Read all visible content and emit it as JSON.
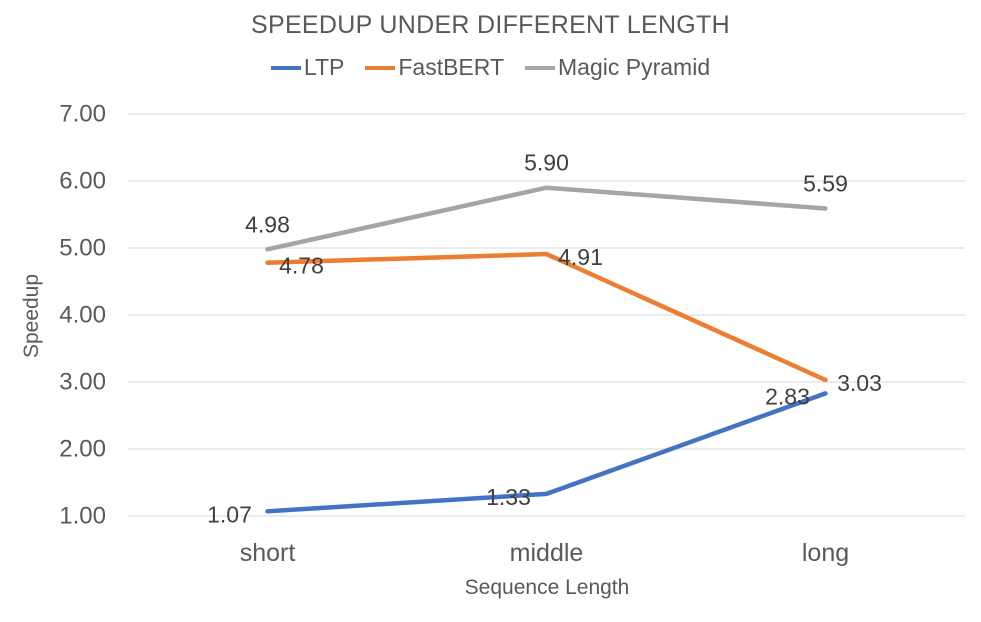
{
  "chart_data": {
    "type": "line",
    "title": "SPEEDUP UNDER DIFFERENT LENGTH",
    "xlabel": "Sequence Length",
    "ylabel": "Speedup",
    "categories": [
      "short",
      "middle",
      "long"
    ],
    "series": [
      {
        "name": "LTP",
        "color": "#4472C4",
        "values": [
          1.07,
          1.33,
          2.83
        ],
        "label_offset": [
          -38,
          3
        ]
      },
      {
        "name": "FastBERT",
        "color": "#ED7D31",
        "values": [
          4.78,
          4.91,
          3.03
        ],
        "label_offset": [
          34,
          3
        ]
      },
      {
        "name": "Magic Pyramid",
        "color": "#A5A5A5",
        "values": [
          4.98,
          5.9,
          5.59
        ],
        "label_offset": [
          0,
          -25
        ]
      }
    ],
    "y_ticks": [
      "1.00",
      "2.00",
      "3.00",
      "4.00",
      "5.00",
      "6.00",
      "7.00"
    ],
    "ylim": [
      1,
      7
    ],
    "grid": true,
    "legend_position": "top",
    "data_labels": true,
    "data_label_format": "0.00"
  },
  "theme": {
    "text_color": "#595959",
    "data_label_color": "#404040",
    "gridline_color": "#E0E0E0",
    "background": "#FFFFFF"
  }
}
